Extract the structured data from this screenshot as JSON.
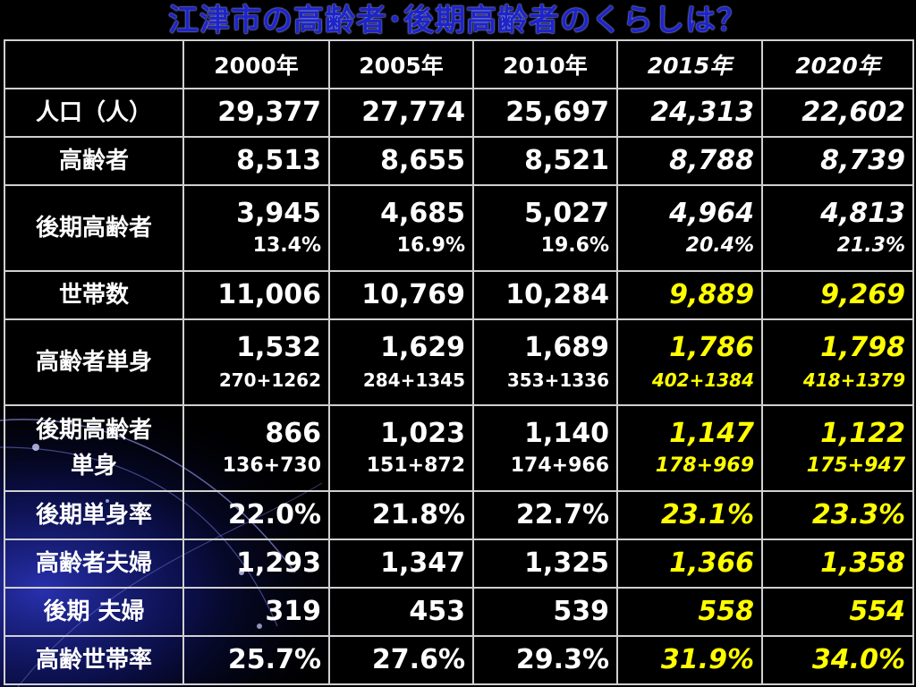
{
  "title": "江津市の高齢者･後期高齢者のくらしは？",
  "headers": [
    "",
    "2000年",
    "2005年",
    "2010年",
    "2015年",
    "2020年"
  ],
  "rows": [
    {
      "label": "人口（人）",
      "cells": [
        {
          "v": "29,377"
        },
        {
          "v": "27,774"
        },
        {
          "v": "25,697"
        },
        {
          "v": "24,313"
        },
        {
          "v": "22,602"
        }
      ]
    },
    {
      "label": "高齢者",
      "cells": [
        {
          "v": "8,513"
        },
        {
          "v": "8,655"
        },
        {
          "v": "8,521"
        },
        {
          "v": "8,788"
        },
        {
          "v": "8,739"
        }
      ]
    },
    {
      "label": "後期高齢者",
      "cells": [
        {
          "v": "3,945",
          "s": "13.4%"
        },
        {
          "v": "4,685",
          "s": "16.9%"
        },
        {
          "v": "5,027",
          "s": "19.6%"
        },
        {
          "v": "4,964",
          "s": "20.4%"
        },
        {
          "v": "4,813",
          "s": "21.3%"
        }
      ]
    },
    {
      "label": "世帯数",
      "cells": [
        {
          "v": "11,006"
        },
        {
          "v": "10,769"
        },
        {
          "v": "10,284"
        },
        {
          "v": "9,889"
        },
        {
          "v": "9,269"
        }
      ]
    },
    {
      "label": "高齢者単身",
      "cells": [
        {
          "v": "1,532",
          "s": "270+1262"
        },
        {
          "v": "1,629",
          "s": "284+1345"
        },
        {
          "v": "1,689",
          "s": "353+1336"
        },
        {
          "v": "1,786",
          "s": "402+1384"
        },
        {
          "v": "1,798",
          "s": "418+1379"
        }
      ]
    },
    {
      "label": "後期高齢者\n単身",
      "cells": [
        {
          "v": "866",
          "s": "136+730"
        },
        {
          "v": "1,023",
          "s": "151+872"
        },
        {
          "v": "1,140",
          "s": "174+966"
        },
        {
          "v": "1,147",
          "s": "178+969"
        },
        {
          "v": "1,122",
          "s": "175+947"
        }
      ]
    },
    {
      "label": "後期単身率",
      "cells": [
        {
          "v": "22.0%"
        },
        {
          "v": "21.8%"
        },
        {
          "v": "22.7%"
        },
        {
          "v": "23.1%"
        },
        {
          "v": "23.3%"
        }
      ]
    },
    {
      "label": "高齢者夫婦",
      "cells": [
        {
          "v": "1,293"
        },
        {
          "v": "1,347"
        },
        {
          "v": "1,325"
        },
        {
          "v": "1,366"
        },
        {
          "v": "1,358"
        }
      ]
    },
    {
      "label": "後期 夫婦",
      "cells": [
        {
          "v": "319"
        },
        {
          "v": "453"
        },
        {
          "v": "539"
        },
        {
          "v": "558"
        },
        {
          "v": "554"
        }
      ]
    },
    {
      "label": "高齢世帯率",
      "cells": [
        {
          "v": "25.7%"
        },
        {
          "v": "27.6%"
        },
        {
          "v": "29.3%"
        },
        {
          "v": "31.9%"
        },
        {
          "v": "34.0%"
        }
      ]
    }
  ],
  "colors": {
    "title": "#1d24c8",
    "highlight": "#ffff00",
    "text": "#ffffff",
    "background": "#000000",
    "border": "#d0d0d0"
  }
}
